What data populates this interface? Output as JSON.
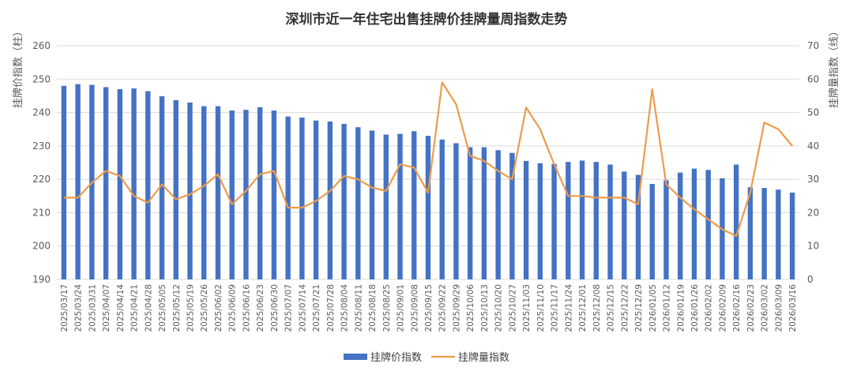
{
  "chart_data": {
    "type": "bar+line",
    "title": "深圳市近一年住宅出售挂牌价挂牌量周指数走势",
    "ylabel_left": "挂牌价指数（柱）",
    "ylabel_right": "挂牌量指数（线）",
    "ylim_left": [
      190,
      260
    ],
    "ylim_right": [
      0,
      70
    ],
    "yticks_left": [
      190,
      200,
      210,
      220,
      230,
      240,
      250,
      260
    ],
    "yticks_right": [
      0,
      10,
      20,
      30,
      40,
      50,
      60,
      70
    ],
    "grid": true,
    "legend_position": "bottom",
    "colors": {
      "bar": "#4472c4",
      "line": "#ed9b4a"
    },
    "categories": [
      "2025/03/17",
      "2025/03/24",
      "2025/03/31",
      "2025/04/07",
      "2025/04/14",
      "2025/04/21",
      "2025/04/28",
      "2025/05/05",
      "2025/05/12",
      "2025/05/19",
      "2025/05/26",
      "2025/06/02",
      "2025/06/09",
      "2025/06/16",
      "2025/06/23",
      "2025/06/30",
      "2025/07/07",
      "2025/07/14",
      "2025/07/21",
      "2025/07/28",
      "2025/08/04",
      "2025/08/11",
      "2025/08/18",
      "2025/08/25",
      "2025/09/01",
      "2025/09/08",
      "2025/09/15",
      "2025/09/22",
      "2025/09/29",
      "2025/10/06",
      "2025/10/13",
      "2025/10/20",
      "2025/10/27",
      "2025/11/03",
      "2025/11/10",
      "2025/11/17",
      "2025/11/24",
      "2025/12/01",
      "2025/12/08",
      "2025/12/15",
      "2025/12/22",
      "2025/12/29",
      "2026/01/05",
      "2026/01/12",
      "2026/01/19",
      "2026/01/26",
      "2026/02/02",
      "2026/02/09",
      "2026/02/16",
      "2026/02/23",
      "2026/03/02",
      "2026/03/09",
      "2026/03/16"
    ],
    "series": [
      {
        "name": "挂牌价指数",
        "kind": "bar",
        "axis": "left",
        "values": [
          248.0,
          248.5,
          248.3,
          247.6,
          247.0,
          247.2,
          246.4,
          244.9,
          243.7,
          243.0,
          241.9,
          241.9,
          240.6,
          240.8,
          241.6,
          240.6,
          238.8,
          238.5,
          237.6,
          237.3,
          236.6,
          235.6,
          234.6,
          233.4,
          233.6,
          234.4,
          233.0,
          231.9,
          230.8,
          229.6,
          229.6,
          228.7,
          227.9,
          225.5,
          224.8,
          224.6,
          225.2,
          225.6,
          225.2,
          224.4,
          222.3,
          221.3,
          218.6,
          219.7,
          222.0,
          223.2,
          222.8,
          220.3,
          224.4,
          217.6,
          217.4,
          216.9,
          216.0
        ]
      },
      {
        "name": "挂牌量指数",
        "kind": "line",
        "axis": "right",
        "values": [
          24.5,
          24.5,
          29.0,
          32.5,
          31.0,
          25.0,
          23.0,
          28.5,
          24.0,
          25.5,
          28.0,
          31.5,
          22.5,
          26.5,
          31.5,
          32.5,
          21.5,
          21.5,
          23.5,
          26.5,
          31.0,
          30.0,
          27.5,
          26.5,
          34.5,
          33.5,
          26.0,
          59.0,
          52.5,
          37.0,
          35.5,
          32.5,
          30.0,
          51.5,
          45.0,
          34.5,
          25.0,
          25.0,
          24.5,
          24.5,
          24.5,
          22.5,
          57.0,
          28.5,
          24.5,
          21.0,
          18.0,
          15.0,
          13.0,
          26.0,
          47.0,
          45.0,
          40.0
        ]
      }
    ]
  }
}
